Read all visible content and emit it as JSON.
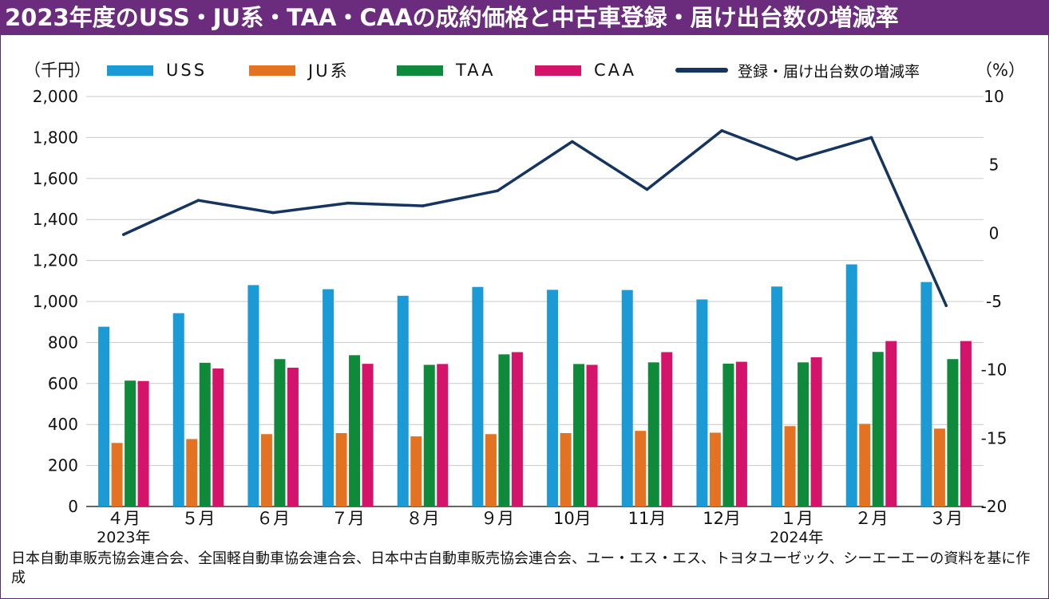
{
  "title": "2023年度のUSS・JU系・TAA・CAAの成約価格と中古車登録・届け出台数の増減率",
  "unit_left": "（千円）",
  "unit_right": "（%）",
  "legend": [
    {
      "name": "USS",
      "color": "#1b9ad6"
    },
    {
      "name": "JU系",
      "color": "#e37222"
    },
    {
      "name": "TAA",
      "color": "#0e8a3a"
    },
    {
      "name": "CAA",
      "color": "#d4146a"
    },
    {
      "name": "登録・届け出台数の増減率",
      "color": "#15345f"
    }
  ],
  "footnote": "日本自動車販売協会連合会、全国軽自動車協会連合会、日本中古自動車販売協会連合会、ユー・エス・エス、トヨタユーゼック、シーエーエーの資料を基に作成",
  "chart_data": {
    "type": "bar",
    "categories": [
      "４月",
      "５月",
      "６月",
      "７月",
      "８月",
      "９月",
      "10月",
      "11月",
      "12月",
      "１月",
      "２月",
      "３月"
    ],
    "category_sublabels": [
      "2023年",
      "",
      "",
      "",
      "",
      "",
      "",
      "",
      "",
      "2024年",
      "",
      ""
    ],
    "left_axis": {
      "unit": "千円",
      "min": 0,
      "max": 2000,
      "ticks": [
        "0",
        "200",
        "400",
        "600",
        "800",
        "1,000",
        "1,200",
        "1,400",
        "1,600",
        "1,800",
        "2,000"
      ]
    },
    "right_axis": {
      "unit": "%",
      "min": -20,
      "max": 10,
      "ticks": [
        "-20",
        "-15",
        "-10",
        "-5",
        "0",
        "5",
        "10"
      ]
    },
    "series": [
      {
        "name": "USS",
        "type": "bar",
        "axis": "left",
        "color": "#1b9ad6",
        "values": [
          877,
          943,
          1080,
          1060,
          1028,
          1071,
          1057,
          1056,
          1010,
          1073,
          1181,
          1095
        ]
      },
      {
        "name": "JU系",
        "type": "bar",
        "axis": "left",
        "color": "#e37222",
        "values": [
          310,
          329,
          353,
          358,
          342,
          353,
          358,
          369,
          360,
          392,
          403,
          380
        ]
      },
      {
        "name": "TAA",
        "type": "bar",
        "axis": "left",
        "color": "#0e8a3a",
        "values": [
          614,
          701,
          719,
          738,
          691,
          742,
          695,
          703,
          697,
          703,
          754,
          719
        ]
      },
      {
        "name": "CAA",
        "type": "bar",
        "axis": "left",
        "color": "#d4146a",
        "values": [
          612,
          673,
          677,
          696,
          695,
          753,
          691,
          753,
          706,
          728,
          807,
          807
        ]
      },
      {
        "name": "登録・届け出台数の増減率",
        "type": "line",
        "axis": "right",
        "color": "#15345f",
        "values": [
          -0.1,
          2.4,
          1.5,
          2.2,
          2.0,
          3.1,
          6.7,
          3.2,
          7.5,
          5.4,
          7.0,
          -5.3
        ]
      }
    ],
    "grid": true,
    "legend_position": "top"
  }
}
